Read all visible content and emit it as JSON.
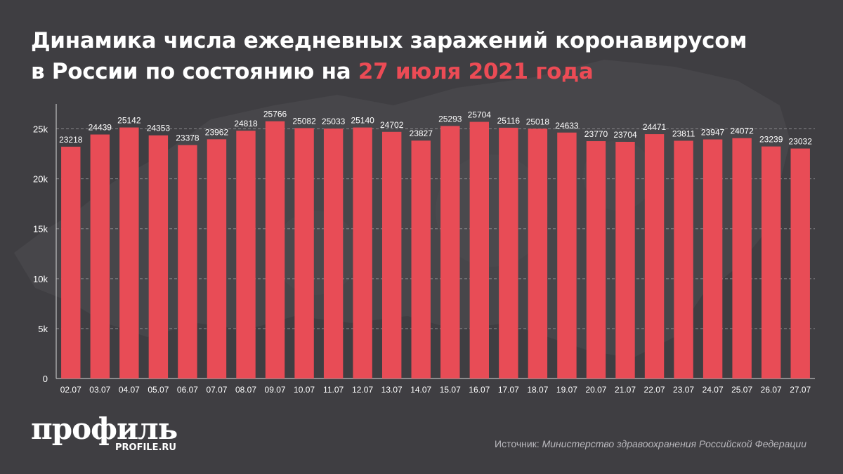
{
  "title": {
    "line1": "Динамика числа ежедневных заражений коронавирусом",
    "line2": "в России по состоянию на ",
    "accent": "27 июля 2021 года"
  },
  "colors": {
    "background": "#3f3e42",
    "bar": "#e84c56",
    "accent": "#ec4b55",
    "text": "#ffffff",
    "axis": "#e6e6e6"
  },
  "chart_data": {
    "type": "bar",
    "categories": [
      "02.07",
      "03.07",
      "04.07",
      "05.07",
      "06.07",
      "07.07",
      "08.07",
      "09.07",
      "10.07",
      "11.07",
      "12.07",
      "13.07",
      "14.07",
      "15.07",
      "16.07",
      "17.07",
      "18.07",
      "19.07",
      "20.07",
      "21.07",
      "22.07",
      "23.07",
      "24.07",
      "25.07",
      "26.07",
      "27.07"
    ],
    "values": [
      23218,
      24439,
      25142,
      24353,
      23378,
      23962,
      24818,
      25766,
      25082,
      25033,
      25140,
      24702,
      23827,
      25293,
      25704,
      25116,
      25018,
      24633,
      23770,
      23704,
      24471,
      23811,
      23947,
      24072,
      23239,
      23032
    ],
    "ylim": [
      0,
      27500
    ],
    "yticks": [
      0,
      5000,
      10000,
      15000,
      20000,
      25000
    ],
    "ytick_labels": [
      "0",
      "5k",
      "10k",
      "15k",
      "20k",
      "25k"
    ],
    "grid": true
  },
  "footer": {
    "logo": "профиль",
    "site": "PROFILE.RU",
    "source_label": "Источник: ",
    "source_name": "Министерство здравоохранения Российской Федерации"
  }
}
